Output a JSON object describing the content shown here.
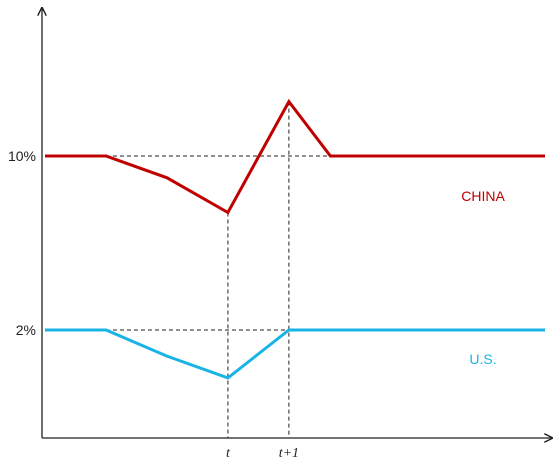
{
  "chart_data": {
    "type": "line",
    "title": "",
    "xlabel": "",
    "ylabel": "",
    "x_ticks": [
      {
        "x": 3,
        "label": "t"
      },
      {
        "x": 4,
        "label": "t+1"
      }
    ],
    "y_ticks": [
      {
        "y": 10,
        "label": "10%"
      },
      {
        "y": 2,
        "label": "2%"
      }
    ],
    "xlim": [
      0,
      8.2
    ],
    "ylim": [
      -2.4,
      17.5
    ],
    "grid": false,
    "legend": "inline-right",
    "series": [
      {
        "name": "CHINA",
        "color": "#c00000",
        "x": [
          0,
          1,
          2,
          3,
          4,
          4.68,
          8.2
        ],
        "y": [
          10,
          10,
          9,
          7.4,
          12.5,
          10,
          10
        ]
      },
      {
        "name": "U.S.",
        "color": "#1ab3e6",
        "x": [
          0,
          1,
          2,
          3,
          4,
          4.68,
          8.2
        ],
        "y": [
          2,
          2,
          0.8,
          -0.2,
          2,
          2,
          2
        ]
      }
    ]
  }
}
